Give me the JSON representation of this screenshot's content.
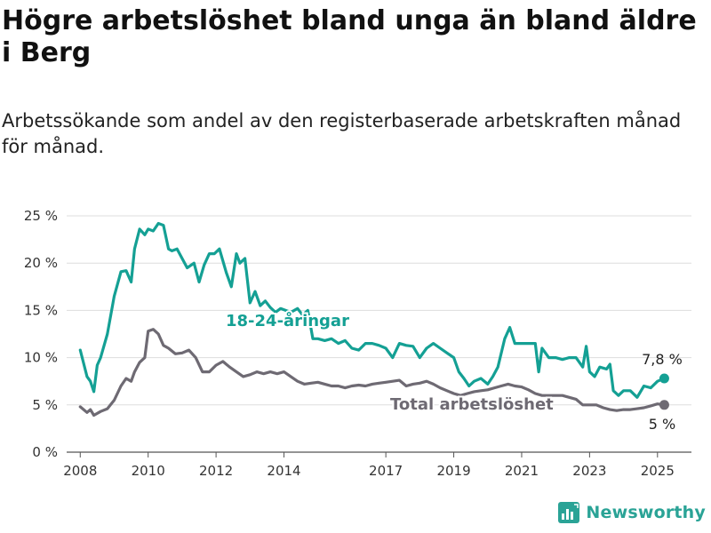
{
  "title": "Högre arbetslöshet bland unga än bland äldre i Berg",
  "subtitle": "Arbetssökande som andel av den registerbaserade arbetskraften månad för månad.",
  "brand": "Newsworthy",
  "chart_data": {
    "type": "line",
    "ylim": [
      0,
      25
    ],
    "xlim": [
      2007.6,
      2026.0
    ],
    "y_ticks": [
      0,
      5,
      10,
      15,
      20,
      25
    ],
    "y_tick_labels": [
      "0 %",
      "5 %",
      "10 %",
      "15 %",
      "20 %",
      "25 %"
    ],
    "x_ticks": [
      2008,
      2010,
      2012,
      2014,
      2017,
      2019,
      2021,
      2023,
      2025
    ],
    "x_tick_labels": [
      "2008",
      "2010",
      "2012",
      "2014",
      "2017",
      "2019",
      "2021",
      "2023",
      "2025"
    ],
    "grid": "horizontal",
    "series": [
      {
        "name": "18-24-åringar",
        "color": "#14a094",
        "end_label": "7,8 %",
        "x": [
          2008.0,
          2008.2,
          2008.3,
          2008.4,
          2008.5,
          2008.6,
          2008.8,
          2009.0,
          2009.2,
          2009.35,
          2009.5,
          2009.6,
          2009.75,
          2009.9,
          2010.0,
          2010.15,
          2010.3,
          2010.45,
          2010.6,
          2010.7,
          2010.85,
          2011.0,
          2011.15,
          2011.35,
          2011.5,
          2011.65,
          2011.8,
          2011.95,
          2012.1,
          2012.3,
          2012.45,
          2012.6,
          2012.7,
          2012.85,
          2013.0,
          2013.15,
          2013.3,
          2013.45,
          2013.6,
          2013.75,
          2013.9,
          2014.05,
          2014.2,
          2014.4,
          2014.55,
          2014.7,
          2014.85,
          2015.0,
          2015.2,
          2015.4,
          2015.6,
          2015.8,
          2016.0,
          2016.2,
          2016.4,
          2016.6,
          2016.8,
          2017.0,
          2017.2,
          2017.4,
          2017.6,
          2017.8,
          2018.0,
          2018.2,
          2018.4,
          2018.6,
          2018.8,
          2019.0,
          2019.15,
          2019.3,
          2019.45,
          2019.6,
          2019.8,
          2020.0,
          2020.15,
          2020.3,
          2020.5,
          2020.65,
          2020.8,
          2021.0,
          2021.2,
          2021.4,
          2021.5,
          2021.6,
          2021.8,
          2022.0,
          2022.2,
          2022.4,
          2022.6,
          2022.8,
          2022.9,
          2023.0,
          2023.15,
          2023.3,
          2023.5,
          2023.6,
          2023.7,
          2023.85,
          2024.0,
          2024.2,
          2024.4,
          2024.6,
          2024.8,
          2025.0,
          2025.2
        ],
        "y": [
          10.8,
          8.0,
          7.5,
          6.4,
          9.2,
          10.0,
          12.5,
          16.5,
          19.1,
          19.2,
          18.0,
          21.5,
          23.6,
          23.0,
          23.6,
          23.4,
          24.2,
          24.0,
          21.5,
          21.3,
          21.5,
          20.5,
          19.5,
          20.0,
          18.0,
          19.8,
          21.0,
          21.0,
          21.5,
          19.0,
          17.5,
          21.0,
          20.0,
          20.5,
          15.8,
          17.0,
          15.5,
          16.0,
          15.3,
          14.8,
          15.2,
          15.0,
          14.8,
          15.2,
          14.5,
          15.0,
          12.0,
          12.0,
          11.8,
          12.0,
          11.5,
          11.8,
          11.0,
          10.8,
          11.5,
          11.5,
          11.3,
          11.0,
          10.0,
          11.5,
          11.3,
          11.2,
          10.0,
          11.0,
          11.5,
          11.0,
          10.5,
          10.0,
          8.5,
          7.8,
          7.0,
          7.5,
          7.8,
          7.2,
          8.0,
          9.0,
          12.0,
          13.2,
          11.5,
          11.5,
          11.5,
          11.5,
          8.5,
          11.0,
          10.0,
          10.0,
          9.8,
          10.0,
          10.0,
          9.0,
          11.2,
          8.5,
          8.0,
          9.0,
          8.8,
          9.3,
          6.5,
          6.0,
          6.5,
          6.5,
          5.8,
          7.0,
          6.8,
          7.5,
          7.8
        ]
      },
      {
        "name": "Total arbetslöshet",
        "color": "#6e6a73",
        "end_label": "5 %",
        "x": [
          2008.0,
          2008.2,
          2008.3,
          2008.4,
          2008.6,
          2008.8,
          2009.0,
          2009.2,
          2009.35,
          2009.5,
          2009.6,
          2009.75,
          2009.9,
          2010.0,
          2010.15,
          2010.3,
          2010.45,
          2010.6,
          2010.8,
          2011.0,
          2011.2,
          2011.4,
          2011.6,
          2011.8,
          2012.0,
          2012.2,
          2012.4,
          2012.6,
          2012.8,
          2013.0,
          2013.2,
          2013.4,
          2013.6,
          2013.8,
          2014.0,
          2014.2,
          2014.4,
          2014.6,
          2014.8,
          2015.0,
          2015.2,
          2015.4,
          2015.6,
          2015.8,
          2016.0,
          2016.2,
          2016.4,
          2016.6,
          2016.8,
          2017.0,
          2017.2,
          2017.4,
          2017.6,
          2017.8,
          2018.0,
          2018.2,
          2018.4,
          2018.6,
          2018.8,
          2019.0,
          2019.2,
          2019.4,
          2019.6,
          2019.8,
          2020.0,
          2020.2,
          2020.4,
          2020.6,
          2020.8,
          2021.0,
          2021.2,
          2021.4,
          2021.6,
          2021.8,
          2022.0,
          2022.2,
          2022.4,
          2022.6,
          2022.8,
          2023.0,
          2023.2,
          2023.4,
          2023.6,
          2023.8,
          2024.0,
          2024.2,
          2024.4,
          2024.6,
          2024.8,
          2025.0,
          2025.2
        ],
        "y": [
          4.8,
          4.2,
          4.5,
          3.9,
          4.3,
          4.6,
          5.5,
          7.0,
          7.8,
          7.5,
          8.5,
          9.5,
          10.0,
          12.8,
          13.0,
          12.5,
          11.3,
          11.0,
          10.4,
          10.5,
          10.8,
          10.0,
          8.5,
          8.5,
          9.2,
          9.6,
          9.0,
          8.5,
          8.0,
          8.2,
          8.5,
          8.3,
          8.5,
          8.3,
          8.5,
          8.0,
          7.5,
          7.2,
          7.3,
          7.4,
          7.2,
          7.0,
          7.0,
          6.8,
          7.0,
          7.1,
          7.0,
          7.2,
          7.3,
          7.4,
          7.5,
          7.6,
          7.0,
          7.2,
          7.3,
          7.5,
          7.2,
          6.8,
          6.5,
          6.2,
          6.0,
          6.2,
          6.4,
          6.5,
          6.6,
          6.8,
          7.0,
          7.2,
          7.0,
          6.9,
          6.6,
          6.2,
          6.0,
          6.0,
          6.0,
          6.0,
          5.8,
          5.6,
          5.0,
          5.0,
          5.0,
          4.7,
          4.5,
          4.4,
          4.5,
          4.5,
          4.6,
          4.7,
          4.9,
          5.1,
          5.0
        ]
      }
    ]
  }
}
